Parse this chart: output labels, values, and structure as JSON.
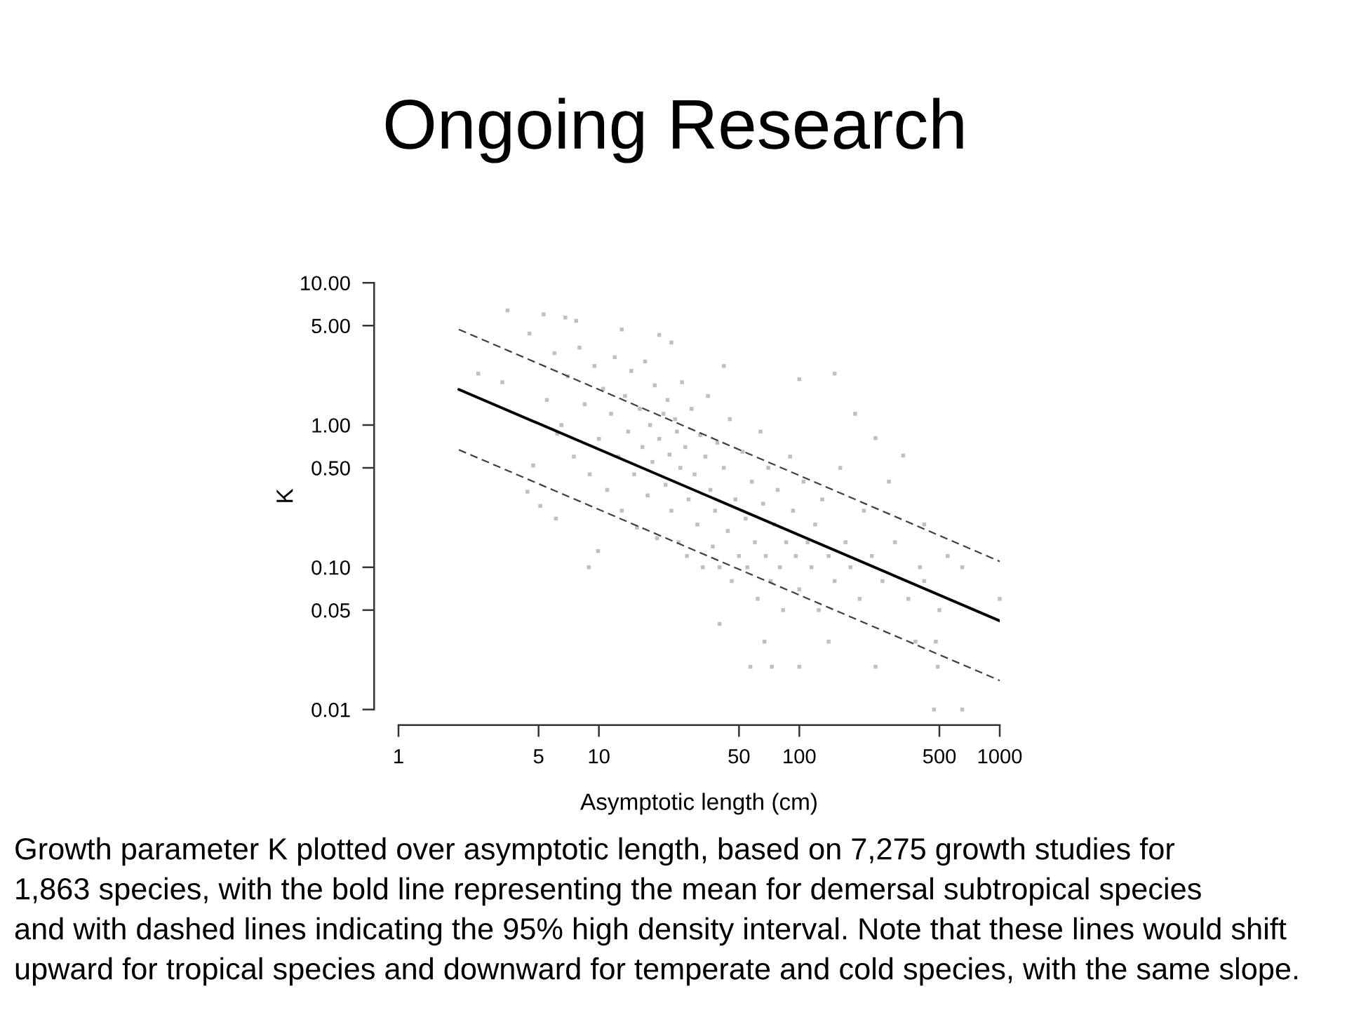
{
  "chart_data": {
    "type": "scatter",
    "title": "Ongoing Research",
    "xlabel": "Asymptotic length (cm)",
    "ylabel": "K",
    "log": "xy",
    "xlim": [
      1,
      1000
    ],
    "ylim": [
      0.01,
      10
    ],
    "xticks": [
      1,
      5,
      10,
      50,
      100,
      500,
      1000
    ],
    "yticks": [
      0.01,
      0.05,
      {
        "value": 0.1,
        "label": "0.10"
      },
      {
        "value": 0.5,
        "label": "0.50"
      },
      {
        "value": 1,
        "label": "1.00"
      },
      {
        "value": 5,
        "label": "5.00"
      },
      {
        "value": 10,
        "label": "10.00"
      }
    ],
    "series": [
      {
        "color": "#c0c0c0",
        "marker": "square",
        "x": [
          2.5,
          3.3,
          3.5,
          4.4,
          4.5,
          4.7,
          5.1,
          5.3,
          6.1,
          6.2,
          6.8,
          7.7,
          8.9,
          9.9,
          13,
          20,
          23,
          42,
          100,
          150,
          190,
          240,
          330,
          650,
          1000,
          470,
          650,
          57,
          73,
          100,
          240,
          490,
          67,
          140,
          480,
          40,
          5.5,
          6,
          6.5,
          7,
          7.5,
          8,
          8.5,
          9,
          9.5,
          10,
          10.5,
          11,
          11.5,
          12,
          12.5,
          13,
          13.5,
          14,
          14.5,
          15,
          15.5,
          16,
          16.5,
          17,
          17.5,
          18,
          18.5,
          19,
          19.5,
          20,
          21,
          21.5,
          22,
          22.5,
          23,
          24,
          24.5,
          25,
          25.5,
          26,
          27,
          27.5,
          28,
          29,
          30,
          31,
          32,
          33,
          34,
          35,
          36,
          37,
          38,
          39,
          40,
          42,
          44,
          45,
          46,
          48,
          50,
          52,
          54,
          55,
          58,
          60,
          62,
          64,
          66,
          68,
          70,
          72,
          75,
          78,
          80,
          83,
          86,
          90,
          93,
          96,
          100,
          105,
          110,
          115,
          120,
          125,
          130,
          140,
          150,
          160,
          170,
          180,
          200,
          210,
          230,
          260,
          280,
          300,
          350,
          400,
          420,
          500,
          550,
          380,
          420
        ],
        "values": [
          2.3,
          2.0,
          6.4,
          0.34,
          4.4,
          0.52,
          0.27,
          6.0,
          0.22,
          0.87,
          5.7,
          5.4,
          0.1,
          0.13,
          4.7,
          4.3,
          3.8,
          2.6,
          2.1,
          2.3,
          1.2,
          0.81,
          0.61,
          0.1,
          0.06,
          0.01,
          0.01,
          0.02,
          0.02,
          0.02,
          0.02,
          0.02,
          0.03,
          0.03,
          0.03,
          0.04,
          1.5,
          3.2,
          1.0,
          2.2,
          0.6,
          3.5,
          1.4,
          0.45,
          2.6,
          0.8,
          1.8,
          0.35,
          1.2,
          3.0,
          0.6,
          0.25,
          1.6,
          0.9,
          2.4,
          0.45,
          0.19,
          1.3,
          0.7,
          2.8,
          0.32,
          1.0,
          0.55,
          1.9,
          0.16,
          0.8,
          1.2,
          0.38,
          1.5,
          0.62,
          0.25,
          1.1,
          0.9,
          0.15,
          0.5,
          2.0,
          0.7,
          0.12,
          0.3,
          1.3,
          0.45,
          0.2,
          0.85,
          0.1,
          0.6,
          1.6,
          0.35,
          0.14,
          0.25,
          0.75,
          0.1,
          0.5,
          0.18,
          1.1,
          0.08,
          0.3,
          0.12,
          0.65,
          0.22,
          0.1,
          0.4,
          0.15,
          0.06,
          0.9,
          0.28,
          0.12,
          0.5,
          0.08,
          0.2,
          0.35,
          0.1,
          0.05,
          0.15,
          0.6,
          0.25,
          0.12,
          0.07,
          0.4,
          0.15,
          0.1,
          0.2,
          0.05,
          0.3,
          0.12,
          0.08,
          0.5,
          0.15,
          0.1,
          0.06,
          0.25,
          0.12,
          0.08,
          0.4,
          0.15,
          0.06,
          0.1,
          0.2,
          0.05,
          0.12,
          0.03,
          0.08
        ]
      },
      {
        "type": "line",
        "color": "#000000",
        "marker": "none",
        "line_style": "solid",
        "x": [
          2,
          1000
        ],
        "values": [
          1.78,
          0.042
        ]
      },
      {
        "type": "line",
        "color": "#404040",
        "marker": "none",
        "line_style": "dashed",
        "x": [
          2,
          1000
        ],
        "values": [
          4.7,
          0.11
        ]
      },
      {
        "type": "line",
        "color": "#404040",
        "marker": "none",
        "line_style": "dashed",
        "x": [
          2,
          1000
        ],
        "values": [
          0.67,
          0.016
        ]
      }
    ],
    "annotations": [
      "Growth parameter K plotted over asymptotic length, based on 7,275 growth studies for",
      "1,863 species, with the bold line representing the mean for demersal subtropical species",
      "and with dashed lines indicating the 95% high density interval. Note that these lines would shift",
      "upward for tropical species and downward for temperate and cold species, with the same slope."
    ]
  }
}
